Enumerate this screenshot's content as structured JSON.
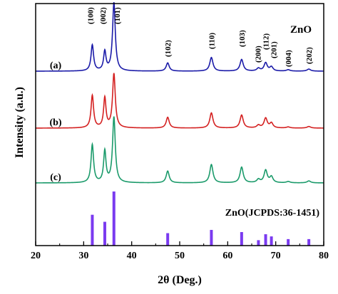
{
  "chart_data": {
    "type": "line",
    "title": "ZnO",
    "xlabel": "2θ (Deg.)",
    "ylabel": "Intensity (a.u.)",
    "xlim": [
      20,
      80
    ],
    "x_ticks": [
      20,
      30,
      40,
      50,
      60,
      70,
      80
    ],
    "y_ticks_shown": false,
    "grid": false,
    "peaks": [
      {
        "hkl": "(100)",
        "two_theta": 31.8
      },
      {
        "hkl": "(002)",
        "two_theta": 34.4
      },
      {
        "hkl": "(101)",
        "two_theta": 36.3
      },
      {
        "hkl": "(102)",
        "two_theta": 47.5
      },
      {
        "hkl": "(110)",
        "two_theta": 56.6
      },
      {
        "hkl": "(103)",
        "two_theta": 62.9
      },
      {
        "hkl": "(200)",
        "two_theta": 66.4
      },
      {
        "hkl": "(112)",
        "two_theta": 67.9
      },
      {
        "hkl": "(201)",
        "two_theta": 69.1
      },
      {
        "hkl": "(004)",
        "two_theta": 72.6
      },
      {
        "hkl": "(202)",
        "two_theta": 76.9
      }
    ],
    "series": [
      {
        "name": "(a)",
        "color": "#1a1aa8",
        "intensities": [
          0.38,
          0.28,
          1.0,
          0.12,
          0.2,
          0.17,
          0.04,
          0.12,
          0.06,
          0.02,
          0.03
        ]
      },
      {
        "name": "(b)",
        "color": "#d42020",
        "intensities": [
          0.6,
          0.55,
          1.0,
          0.2,
          0.28,
          0.24,
          0.05,
          0.18,
          0.09,
          0.02,
          0.03
        ]
      },
      {
        "name": "(c)",
        "color": "#1a9a6a",
        "intensities": [
          0.58,
          0.48,
          1.0,
          0.18,
          0.28,
          0.24,
          0.05,
          0.19,
          0.09,
          0.02,
          0.03
        ]
      }
    ],
    "reference": {
      "name": "ZnO(JCPDS:36-1451)",
      "color": "#7a3af0",
      "intensities": [
        0.57,
        0.44,
        1.0,
        0.23,
        0.29,
        0.25,
        0.1,
        0.21,
        0.17,
        0.12,
        0.12
      ]
    }
  }
}
